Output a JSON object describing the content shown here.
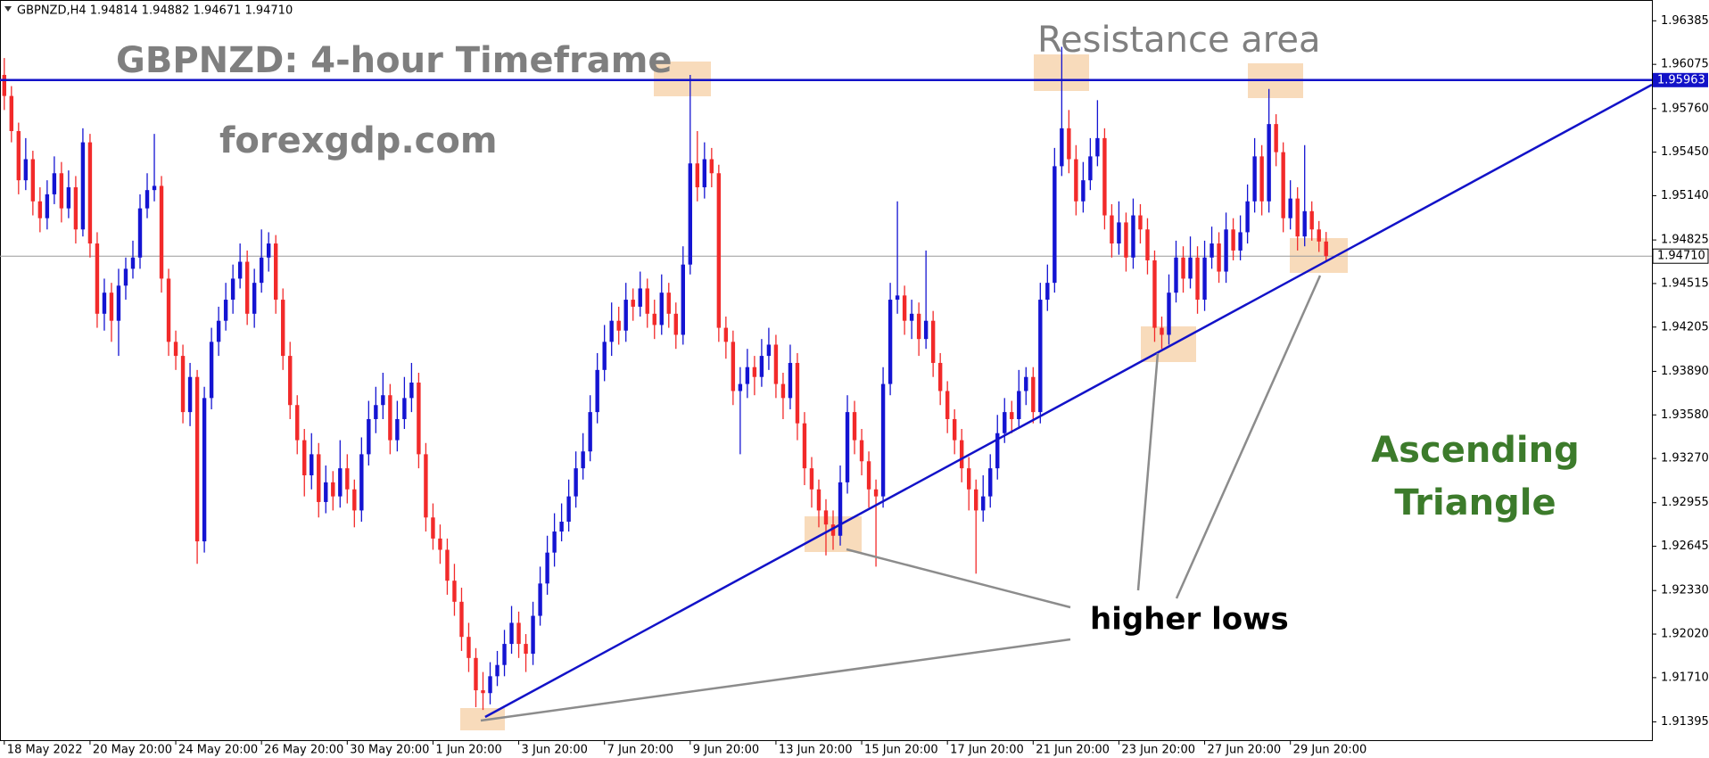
{
  "chart_data": {
    "type": "candlestick",
    "header": "GBPNZD,H4 1.94814 1.94882 1.94671 1.94710",
    "title": "GBPNZD: 4-hour Timeframe",
    "subtitle": "forexgdp.com",
    "annotations": {
      "resistance": "Resistance area",
      "pattern": [
        "Ascending",
        "Triangle"
      ],
      "lows": "higher lows"
    },
    "up_color": "#1414d2",
    "down_color": "#f22a2a",
    "line_color": "#1212c8",
    "resistance_level": {
      "value": 1.95963,
      "label": "1.95963"
    },
    "last_price": {
      "value": 1.9471,
      "label": "1.94710"
    },
    "trendline": {
      "x": [
        67.3,
        230.6
      ],
      "y": [
        1.9143,
        1.9593
      ]
    },
    "xlim": [
      -0.6,
      230.6
    ],
    "ylim": [
      1.91265,
      1.96533
    ],
    "xticks": [
      {
        "value": 0,
        "label": "18 May 2022"
      },
      {
        "value": 12,
        "label": "20 May 20:00"
      },
      {
        "value": 24,
        "label": "24 May 20:00"
      },
      {
        "value": 36,
        "label": "26 May 20:00"
      },
      {
        "value": 48,
        "label": "30 May 20:00"
      },
      {
        "value": 60,
        "label": "1 Jun 20:00"
      },
      {
        "value": 72,
        "label": "3 Jun 20:00"
      },
      {
        "value": 84,
        "label": "7 Jun 20:00"
      },
      {
        "value": 96,
        "label": "9 Jun 20:00"
      },
      {
        "value": 108,
        "label": "13 Jun 20:00"
      },
      {
        "value": 120,
        "label": "15 Jun 20:00"
      },
      {
        "value": 132,
        "label": "17 Jun 20:00"
      },
      {
        "value": 144,
        "label": "21 Jun 20:00"
      },
      {
        "value": 156,
        "label": "23 Jun 20:00"
      },
      {
        "value": 168,
        "label": "27 Jun 20:00"
      },
      {
        "value": 180,
        "label": "29 Jun 20:00"
      }
    ],
    "yticks": [
      1.96385,
      1.96075,
      {
        "value": 1.9576,
        "label": "1.95760"
      },
      {
        "value": 1.9545,
        "label": "1.95450"
      },
      {
        "value": 1.9514,
        "label": "1.95140"
      },
      1.94825,
      1.94515,
      1.94205,
      {
        "value": 1.9389,
        "label": "1.93890"
      },
      {
        "value": 1.9358,
        "label": "1.93580"
      },
      {
        "value": 1.9327,
        "label": "1.93270"
      },
      1.92955,
      1.92645,
      {
        "value": 1.9233,
        "label": "1.92330"
      },
      {
        "value": 1.9202,
        "label": "1.92020"
      },
      {
        "value": 1.9171,
        "label": "1.91710"
      },
      1.91395
    ],
    "candles": [
      [
        1.96,
        1.9612,
        1.9575,
        1.9585
      ],
      [
        1.9585,
        1.9592,
        1.9552,
        1.956
      ],
      [
        1.956,
        1.9566,
        1.9515,
        1.9525
      ],
      [
        1.9525,
        1.9555,
        1.9518,
        1.954
      ],
      [
        1.954,
        1.9546,
        1.95,
        1.951
      ],
      [
        1.951,
        1.952,
        1.9488,
        1.9498
      ],
      [
        1.9498,
        1.9525,
        1.949,
        1.9515
      ],
      [
        1.9515,
        1.9542,
        1.9508,
        1.953
      ],
      [
        1.953,
        1.9538,
        1.9495,
        1.9505
      ],
      [
        1.9505,
        1.9532,
        1.9498,
        1.952
      ],
      [
        1.952,
        1.9528,
        1.948,
        1.949
      ],
      [
        1.949,
        1.9562,
        1.9485,
        1.9552
      ],
      [
        1.9552,
        1.9558,
        1.947,
        1.948
      ],
      [
        1.948,
        1.9488,
        1.942,
        1.943
      ],
      [
        1.943,
        1.9455,
        1.9418,
        1.9445
      ],
      [
        1.9445,
        1.9452,
        1.941,
        1.9425
      ],
      [
        1.9425,
        1.9462,
        1.94,
        1.945
      ],
      [
        1.945,
        1.947,
        1.944,
        1.9462
      ],
      [
        1.9462,
        1.9482,
        1.9455,
        1.947
      ],
      [
        1.947,
        1.9515,
        1.9462,
        1.9505
      ],
      [
        1.9505,
        1.953,
        1.9498,
        1.9518
      ],
      [
        1.9518,
        1.9558,
        1.951,
        1.9521
      ],
      [
        1.9521,
        1.9528,
        1.9445,
        1.9455
      ],
      [
        1.9455,
        1.9462,
        1.94,
        1.941
      ],
      [
        1.941,
        1.9418,
        1.939,
        1.94
      ],
      [
        1.94,
        1.9408,
        1.9352,
        1.936
      ],
      [
        1.936,
        1.9395,
        1.935,
        1.9385
      ],
      [
        1.9385,
        1.939,
        1.9252,
        1.9268
      ],
      [
        1.9268,
        1.9378,
        1.926,
        1.937
      ],
      [
        1.937,
        1.942,
        1.9362,
        1.941
      ],
      [
        1.941,
        1.9435,
        1.94,
        1.9425
      ],
      [
        1.9425,
        1.9452,
        1.9418,
        1.944
      ],
      [
        1.944,
        1.9465,
        1.943,
        1.9455
      ],
      [
        1.9455,
        1.948,
        1.9448,
        1.9467
      ],
      [
        1.9467,
        1.9475,
        1.9422,
        1.943
      ],
      [
        1.943,
        1.9462,
        1.942,
        1.9452
      ],
      [
        1.9452,
        1.949,
        1.9445,
        1.947
      ],
      [
        1.947,
        1.9488,
        1.946,
        1.948
      ],
      [
        1.948,
        1.9486,
        1.943,
        1.944
      ],
      [
        1.944,
        1.9448,
        1.939,
        1.94
      ],
      [
        1.94,
        1.941,
        1.9355,
        1.9365
      ],
      [
        1.9365,
        1.9372,
        1.933,
        1.934
      ],
      [
        1.934,
        1.9348,
        1.93,
        1.9315
      ],
      [
        1.9315,
        1.9345,
        1.9305,
        1.933
      ],
      [
        1.933,
        1.9338,
        1.9285,
        1.9296
      ],
      [
        1.9296,
        1.9322,
        1.9288,
        1.931
      ],
      [
        1.931,
        1.9318,
        1.929,
        1.93
      ],
      [
        1.93,
        1.934,
        1.9292,
        1.932
      ],
      [
        1.932,
        1.933,
        1.9295,
        1.9305
      ],
      [
        1.9305,
        1.9312,
        1.9278,
        1.929
      ],
      [
        1.929,
        1.9342,
        1.9282,
        1.933
      ],
      [
        1.933,
        1.9368,
        1.9322,
        1.9355
      ],
      [
        1.9355,
        1.9378,
        1.9345,
        1.9365
      ],
      [
        1.9365,
        1.9388,
        1.9355,
        1.9372
      ],
      [
        1.9372,
        1.938,
        1.933,
        1.934
      ],
      [
        1.934,
        1.9368,
        1.9332,
        1.9355
      ],
      [
        1.9355,
        1.9385,
        1.9348,
        1.937
      ],
      [
        1.937,
        1.9395,
        1.936,
        1.9381
      ],
      [
        1.9381,
        1.9388,
        1.932,
        1.933
      ],
      [
        1.933,
        1.9338,
        1.9275,
        1.9285
      ],
      [
        1.9285,
        1.9295,
        1.9262,
        1.927
      ],
      [
        1.927,
        1.928,
        1.9252,
        1.9262
      ],
      [
        1.9262,
        1.927,
        1.923,
        1.924
      ],
      [
        1.924,
        1.9252,
        1.9215,
        1.9225
      ],
      [
        1.9225,
        1.9235,
        1.919,
        1.92
      ],
      [
        1.92,
        1.921,
        1.9175,
        1.9185
      ],
      [
        1.9185,
        1.9192,
        1.915,
        1.9162
      ],
      [
        1.9162,
        1.9175,
        1.9148,
        1.916
      ],
      [
        1.916,
        1.9182,
        1.9152,
        1.9172
      ],
      [
        1.9172,
        1.919,
        1.9165,
        1.918
      ],
      [
        1.918,
        1.9205,
        1.9172,
        1.9195
      ],
      [
        1.9195,
        1.9222,
        1.9188,
        1.921
      ],
      [
        1.921,
        1.9218,
        1.9185,
        1.9195
      ],
      [
        1.9195,
        1.9202,
        1.9175,
        1.9188
      ],
      [
        1.9188,
        1.9225,
        1.918,
        1.9215
      ],
      [
        1.9215,
        1.925,
        1.9208,
        1.9238
      ],
      [
        1.9238,
        1.9272,
        1.923,
        1.926
      ],
      [
        1.926,
        1.9288,
        1.925,
        1.9275
      ],
      [
        1.9275,
        1.9295,
        1.9268,
        1.9282
      ],
      [
        1.9282,
        1.9312,
        1.9275,
        1.93
      ],
      [
        1.93,
        1.9332,
        1.9292,
        1.932
      ],
      [
        1.932,
        1.9345,
        1.9312,
        1.9332
      ],
      [
        1.9332,
        1.9372,
        1.9325,
        1.936
      ],
      [
        1.936,
        1.9402,
        1.9352,
        1.939
      ],
      [
        1.939,
        1.9422,
        1.9382,
        1.941
      ],
      [
        1.941,
        1.9438,
        1.94,
        1.9425
      ],
      [
        1.9425,
        1.9435,
        1.9408,
        1.9418
      ],
      [
        1.9418,
        1.9452,
        1.941,
        1.944
      ],
      [
        1.944,
        1.9448,
        1.9425,
        1.9435
      ],
      [
        1.9435,
        1.946,
        1.9428,
        1.9448
      ],
      [
        1.9448,
        1.9455,
        1.942,
        1.943
      ],
      [
        1.943,
        1.944,
        1.9412,
        1.9422
      ],
      [
        1.9422,
        1.9458,
        1.9415,
        1.9445
      ],
      [
        1.9445,
        1.9452,
        1.942,
        1.943
      ],
      [
        1.943,
        1.9438,
        1.9405,
        1.9415
      ],
      [
        1.9415,
        1.9478,
        1.9408,
        1.9465
      ],
      [
        1.9465,
        1.96,
        1.9458,
        1.9537
      ],
      [
        1.9537,
        1.956,
        1.951,
        1.952
      ],
      [
        1.952,
        1.9552,
        1.9512,
        1.954
      ],
      [
        1.954,
        1.9548,
        1.952,
        1.953
      ],
      [
        1.953,
        1.9536,
        1.941,
        1.942
      ],
      [
        1.942,
        1.9428,
        1.9398,
        1.941
      ],
      [
        1.941,
        1.9418,
        1.9365,
        1.9375
      ],
      [
        1.9375,
        1.9392,
        1.933,
        1.938
      ],
      [
        1.938,
        1.9405,
        1.937,
        1.9392
      ],
      [
        1.9392,
        1.94,
        1.9372,
        1.9385
      ],
      [
        1.9385,
        1.9412,
        1.9378,
        1.94
      ],
      [
        1.94,
        1.942,
        1.939,
        1.9408
      ],
      [
        1.9408,
        1.9415,
        1.937,
        1.938
      ],
      [
        1.938,
        1.9388,
        1.9355,
        1.937
      ],
      [
        1.937,
        1.9408,
        1.9362,
        1.9395
      ],
      [
        1.9395,
        1.9402,
        1.934,
        1.9352
      ],
      [
        1.9352,
        1.936,
        1.9308,
        1.932
      ],
      [
        1.932,
        1.9328,
        1.9292,
        1.9305
      ],
      [
        1.9305,
        1.9312,
        1.9278,
        1.929
      ],
      [
        1.929,
        1.9298,
        1.9258,
        1.928
      ],
      [
        1.928,
        1.929,
        1.9262,
        1.9272
      ],
      [
        1.9272,
        1.9322,
        1.9265,
        1.931
      ],
      [
        1.931,
        1.9372,
        1.9302,
        1.936
      ],
      [
        1.936,
        1.9368,
        1.933,
        1.934
      ],
      [
        1.934,
        1.9348,
        1.9315,
        1.9325
      ],
      [
        1.9325,
        1.9332,
        1.9292,
        1.9305
      ],
      [
        1.9305,
        1.9312,
        1.925,
        1.93
      ],
      [
        1.93,
        1.9392,
        1.9292,
        1.938
      ],
      [
        1.938,
        1.9452,
        1.9372,
        1.944
      ],
      [
        1.944,
        1.951,
        1.943,
        1.9443
      ],
      [
        1.9443,
        1.945,
        1.9415,
        1.9425
      ],
      [
        1.9425,
        1.944,
        1.9412,
        1.943
      ],
      [
        1.943,
        1.9438,
        1.94,
        1.9412
      ],
      [
        1.9412,
        1.9475,
        1.9405,
        1.9425
      ],
      [
        1.9425,
        1.9432,
        1.9385,
        1.9395
      ],
      [
        1.9395,
        1.9402,
        1.9365,
        1.9375
      ],
      [
        1.9375,
        1.9382,
        1.9345,
        1.9355
      ],
      [
        1.9355,
        1.9362,
        1.933,
        1.934
      ],
      [
        1.934,
        1.9348,
        1.931,
        1.932
      ],
      [
        1.932,
        1.9328,
        1.929,
        1.9305
      ],
      [
        1.9305,
        1.9312,
        1.9245,
        1.929
      ],
      [
        1.929,
        1.9315,
        1.9282,
        1.93
      ],
      [
        1.93,
        1.933,
        1.9292,
        1.932
      ],
      [
        1.932,
        1.9358,
        1.9312,
        1.9345
      ],
      [
        1.9345,
        1.937,
        1.9338,
        1.936
      ],
      [
        1.936,
        1.9368,
        1.9345,
        1.9355
      ],
      [
        1.9355,
        1.939,
        1.9348,
        1.9375
      ],
      [
        1.9375,
        1.9392,
        1.9365,
        1.9385
      ],
      [
        1.9385,
        1.9392,
        1.9352,
        1.936
      ],
      [
        1.936,
        1.9452,
        1.9352,
        1.944
      ],
      [
        1.944,
        1.9465,
        1.9432,
        1.9452
      ],
      [
        1.9452,
        1.9548,
        1.9445,
        1.9535
      ],
      [
        1.9535,
        1.962,
        1.9528,
        1.9562
      ],
      [
        1.9562,
        1.9575,
        1.953,
        1.954
      ],
      [
        1.954,
        1.955,
        1.95,
        1.951
      ],
      [
        1.951,
        1.9538,
        1.9502,
        1.9525
      ],
      [
        1.9525,
        1.9555,
        1.9518,
        1.9542
      ],
      [
        1.9542,
        1.9582,
        1.9535,
        1.9555
      ],
      [
        1.9555,
        1.9562,
        1.949,
        1.95
      ],
      [
        1.95,
        1.9508,
        1.947,
        1.948
      ],
      [
        1.948,
        1.951,
        1.9472,
        1.9495
      ],
      [
        1.9495,
        1.9502,
        1.946,
        1.947
      ],
      [
        1.947,
        1.9512,
        1.9462,
        1.95
      ],
      [
        1.95,
        1.9508,
        1.948,
        1.949
      ],
      [
        1.949,
        1.9498,
        1.9458,
        1.9468
      ],
      [
        1.9468,
        1.9475,
        1.941,
        1.942
      ],
      [
        1.942,
        1.9428,
        1.9405,
        1.9415
      ],
      [
        1.9415,
        1.9458,
        1.9408,
        1.9445
      ],
      [
        1.9445,
        1.9482,
        1.9438,
        1.947
      ],
      [
        1.947,
        1.9478,
        1.9445,
        1.9455
      ],
      [
        1.9455,
        1.9485,
        1.9448,
        1.947
      ],
      [
        1.947,
        1.9478,
        1.943,
        1.944
      ],
      [
        1.944,
        1.9482,
        1.9432,
        1.947
      ],
      [
        1.947,
        1.9492,
        1.9462,
        1.948
      ],
      [
        1.948,
        1.9488,
        1.9452,
        1.946
      ],
      [
        1.946,
        1.9502,
        1.9452,
        1.949
      ],
      [
        1.949,
        1.9498,
        1.9468,
        1.9475
      ],
      [
        1.9475,
        1.95,
        1.9468,
        1.9488
      ],
      [
        1.9488,
        1.9522,
        1.948,
        1.951
      ],
      [
        1.951,
        1.9555,
        1.9502,
        1.9542
      ],
      [
        1.9542,
        1.955,
        1.95,
        1.951
      ],
      [
        1.951,
        1.959,
        1.9502,
        1.9565
      ],
      [
        1.9565,
        1.9572,
        1.9535,
        1.9545
      ],
      [
        1.9545,
        1.9552,
        1.9488,
        1.9498
      ],
      [
        1.9498,
        1.9525,
        1.949,
        1.9512
      ],
      [
        1.9512,
        1.952,
        1.9475,
        1.9485
      ],
      [
        1.9485,
        1.955,
        1.9478,
        1.9503
      ],
      [
        1.9503,
        1.951,
        1.9482,
        1.949
      ],
      [
        1.949,
        1.9496,
        1.9474,
        1.94814
      ],
      [
        1.94814,
        1.94882,
        1.94671,
        1.9471
      ]
    ]
  }
}
